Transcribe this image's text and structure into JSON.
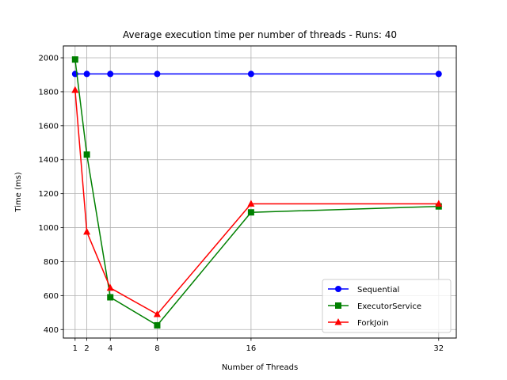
{
  "chart_data": {
    "type": "line",
    "title": "Average execution time per number of threads - Runs: 40",
    "xlabel": "Number of Threads",
    "ylabel": "Time (ms)",
    "x": [
      1,
      2,
      4,
      8,
      16,
      32
    ],
    "xticks": [
      1,
      2,
      4,
      8,
      16,
      32
    ],
    "xlim": [
      0,
      33.5
    ],
    "yticks": [
      400,
      600,
      800,
      1000,
      1200,
      1400,
      1600,
      1800,
      2000
    ],
    "ylim": [
      350,
      2070
    ],
    "grid": true,
    "legend_position": "bottom-right",
    "series": [
      {
        "name": "Sequential",
        "color": "#0000ff",
        "marker": "circle",
        "values": [
          1905,
          1905,
          1905,
          1905,
          1905,
          1905
        ]
      },
      {
        "name": "ExecutorService",
        "color": "#008000",
        "marker": "square",
        "values": [
          1990,
          1430,
          590,
          425,
          1090,
          1125
        ]
      },
      {
        "name": "ForkJoin",
        "color": "#ff0000",
        "marker": "triangle",
        "values": [
          1810,
          975,
          645,
          490,
          1140,
          1140
        ]
      }
    ]
  }
}
